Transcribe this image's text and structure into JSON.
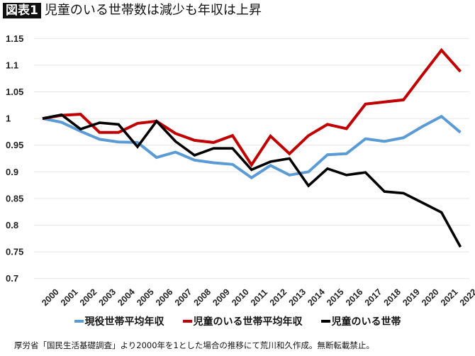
{
  "header": {
    "badge": "図表1",
    "title": "児童のいる世帯数は減少も年収は上昇"
  },
  "footnote": "厚労省「国民生活基礎調査」より2000年を1とした場合の推移にて荒川和久作成。無断転載禁止。",
  "chart_data": {
    "type": "line",
    "title": "",
    "xlabel": "",
    "ylabel": "",
    "ylim": [
      0.7,
      1.15
    ],
    "yticks": [
      "1.15",
      "1.1",
      "1.05",
      "1",
      "0.95",
      "0.9",
      "0.85",
      "0.8",
      "0.75",
      "0.7"
    ],
    "grid": true,
    "legend_position": "bottom",
    "categories": [
      "2000",
      "2001",
      "2002",
      "2003",
      "2004",
      "2005",
      "2006",
      "2007",
      "2008",
      "2009",
      "2010",
      "2011",
      "2012",
      "2013",
      "2014",
      "2015",
      "2016",
      "2017",
      "2018",
      "2019",
      "2020",
      "2021",
      "2022"
    ],
    "series": [
      {
        "name": "現役世帯平均年収",
        "color": "#5b9bd5",
        "values": [
          1.0,
          0.993,
          0.976,
          0.961,
          0.956,
          0.955,
          0.927,
          0.937,
          0.922,
          0.917,
          0.914,
          0.889,
          0.912,
          0.894,
          0.9,
          0.932,
          0.934,
          0.962,
          0.957,
          0.964,
          0.985,
          1.004,
          0.974
        ]
      },
      {
        "name": "児童のいる世帯平均年収",
        "color": "#c00000",
        "values": [
          1.0,
          1.006,
          1.008,
          0.974,
          0.974,
          0.991,
          0.995,
          0.972,
          0.959,
          0.955,
          0.968,
          0.913,
          0.967,
          0.934,
          0.968,
          0.989,
          0.981,
          1.027,
          1.031,
          1.035,
          1.082,
          1.128,
          1.088
        ]
      },
      {
        "name": "児童のいる世帯",
        "color": "#000000",
        "values": [
          1.0,
          1.007,
          0.98,
          0.992,
          0.989,
          0.947,
          0.995,
          0.957,
          0.931,
          0.944,
          0.944,
          0.904,
          0.919,
          0.925,
          0.874,
          0.906,
          0.894,
          0.899,
          0.863,
          0.86,
          0.842,
          0.824,
          0.759
        ]
      }
    ]
  }
}
